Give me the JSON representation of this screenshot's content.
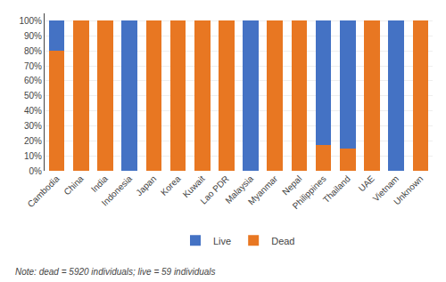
{
  "chart_data": {
    "type": "bar",
    "stacked": true,
    "categories": [
      "Cambodia",
      "China",
      "India",
      "Indonesia",
      "Japan",
      "Korea",
      "Kuwait",
      "Lao PDR",
      "Malaysia",
      "Myanmar",
      "Nepal",
      "Philippines",
      "Thailand",
      "UAE",
      "Vietnam",
      "Unknown"
    ],
    "series": [
      {
        "name": "Dead",
        "color": "#E87722",
        "values": [
          80,
          100,
          100,
          0,
          100,
          100,
          100,
          100,
          0,
          100,
          100,
          17,
          15,
          100,
          0,
          100
        ]
      },
      {
        "name": "Live",
        "color": "#4472C4",
        "values": [
          20,
          0,
          0,
          100,
          0,
          0,
          0,
          0,
          100,
          0,
          0,
          83,
          85,
          0,
          100,
          0
        ]
      }
    ],
    "ylim": [
      0,
      105
    ],
    "yticks": [
      {
        "value": 0,
        "label": "0%"
      },
      {
        "value": 10,
        "label": "10%"
      },
      {
        "value": 20,
        "label": "20%"
      },
      {
        "value": 30,
        "label": "30%"
      },
      {
        "value": 40,
        "label": "40%"
      },
      {
        "value": 50,
        "label": "50%"
      },
      {
        "value": 60,
        "label": "60%"
      },
      {
        "value": 70,
        "label": "70%"
      },
      {
        "value": 80,
        "label": "80%"
      },
      {
        "value": 90,
        "label": "90%"
      },
      {
        "value": 100,
        "label": "100%"
      }
    ],
    "grid": true,
    "legend": "bottom",
    "annotations": [
      "Note: dead = 5920 individuals; live = 59 individuals"
    ]
  }
}
